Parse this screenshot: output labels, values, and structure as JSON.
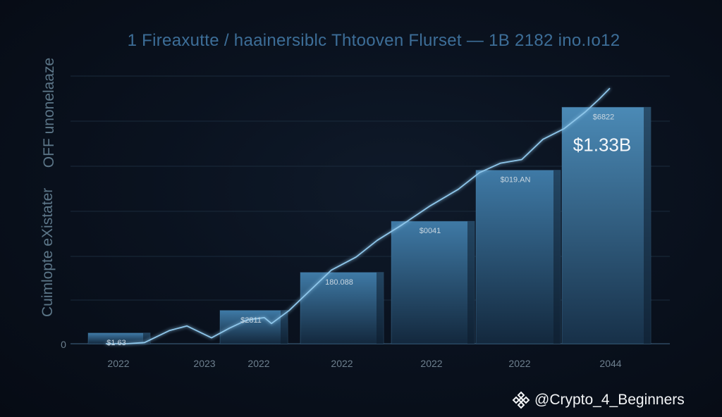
{
  "chart_data": {
    "type": "bar",
    "title": "1 Fireaxutte / haainersiblc Thtooven Flurset — 1B 2182 ino.ıo12",
    "ylabels": [
      "OFF unonelaaze",
      "Cuimlopte eXistater"
    ],
    "zero_label": "0",
    "x_labels": [
      "2022",
      "2023",
      "2022",
      "2022",
      "2022",
      "2022",
      "2044"
    ],
    "bars": [
      {
        "label": "$1 63",
        "value": 0.09
      },
      {
        "label": "$2811",
        "value": 0.28
      },
      {
        "label": "180.088",
        "value": 0.6
      },
      {
        "label": "$0041",
        "value": 1.03
      },
      {
        "label": "$019.AN",
        "value": 1.46
      },
      {
        "label": "$6822",
        "value": 1.99
      }
    ],
    "highlight_label": "$1.33B",
    "line": [
      0.0,
      0.0,
      0.01,
      0.11,
      0.15,
      0.05,
      0.13,
      0.2,
      0.22,
      0.17,
      0.28,
      0.45,
      0.62,
      0.73,
      0.87,
      1.0,
      1.16,
      1.3,
      1.44,
      1.52,
      1.55,
      1.72,
      1.81,
      1.95,
      2.06,
      2.15
    ],
    "ylim": [
      0,
      2.3
    ],
    "grid": true,
    "colors": {
      "bar_top": "#3f7aa6",
      "bar_bottom": "#13283d",
      "line": "#8ec6ea",
      "title": "#3d6e98",
      "label": "#c9d6e0",
      "axis_text": "#6d7f8e"
    }
  },
  "watermark": {
    "icon": "binance-diamond-icon",
    "text": "@Crypto_4_Beginners"
  }
}
